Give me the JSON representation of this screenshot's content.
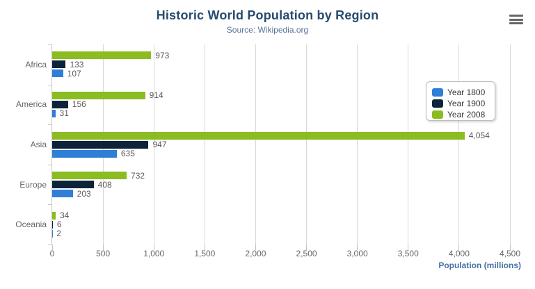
{
  "header": {
    "title": "Historic World Population by Region",
    "subtitle": "Source: Wikipedia.org"
  },
  "menu": {
    "icon": "hamburger-menu-icon"
  },
  "colors": {
    "title": "#274b6d",
    "subtitle": "#587398",
    "axis_title": "#4572a7",
    "gridline": "#d8d8d8",
    "label_gray": "#666666"
  },
  "chart_data": {
    "type": "bar",
    "orientation": "horizontal",
    "title": "Historic World Population by Region",
    "subtitle": "Source: Wikipedia.org",
    "categories": [
      "Africa",
      "America",
      "Asia",
      "Europe",
      "Oceania"
    ],
    "series": [
      {
        "name": "Year 1800",
        "color": "#2f7ed8",
        "values": [
          107,
          31,
          635,
          203,
          2
        ],
        "labels": [
          "107",
          "31",
          "635",
          "203",
          "2"
        ]
      },
      {
        "name": "Year 1900",
        "color": "#0d233a",
        "values": [
          133,
          156,
          947,
          408,
          6
        ],
        "labels": [
          "133",
          "156",
          "947",
          "408",
          "6"
        ]
      },
      {
        "name": "Year 2008",
        "color": "#8bbc21",
        "values": [
          973,
          914,
          4054,
          732,
          34
        ],
        "labels": [
          "973",
          "914",
          "4,054",
          "732",
          "34"
        ]
      }
    ],
    "bar_order_top_to_bottom": [
      "Year 2008",
      "Year 1900",
      "Year 1800"
    ],
    "xlabel": "Population (millions)",
    "xlim": [
      0,
      4500
    ],
    "tick_interval": 500,
    "tick_labels": [
      "0",
      "500",
      "1,000",
      "1,500",
      "2,000",
      "2,500",
      "3,000",
      "3,500",
      "4,000",
      "4,500"
    ],
    "grid": true,
    "legend_position": "right",
    "legend_entries": [
      "Year 1800",
      "Year 1900",
      "Year 2008"
    ]
  }
}
